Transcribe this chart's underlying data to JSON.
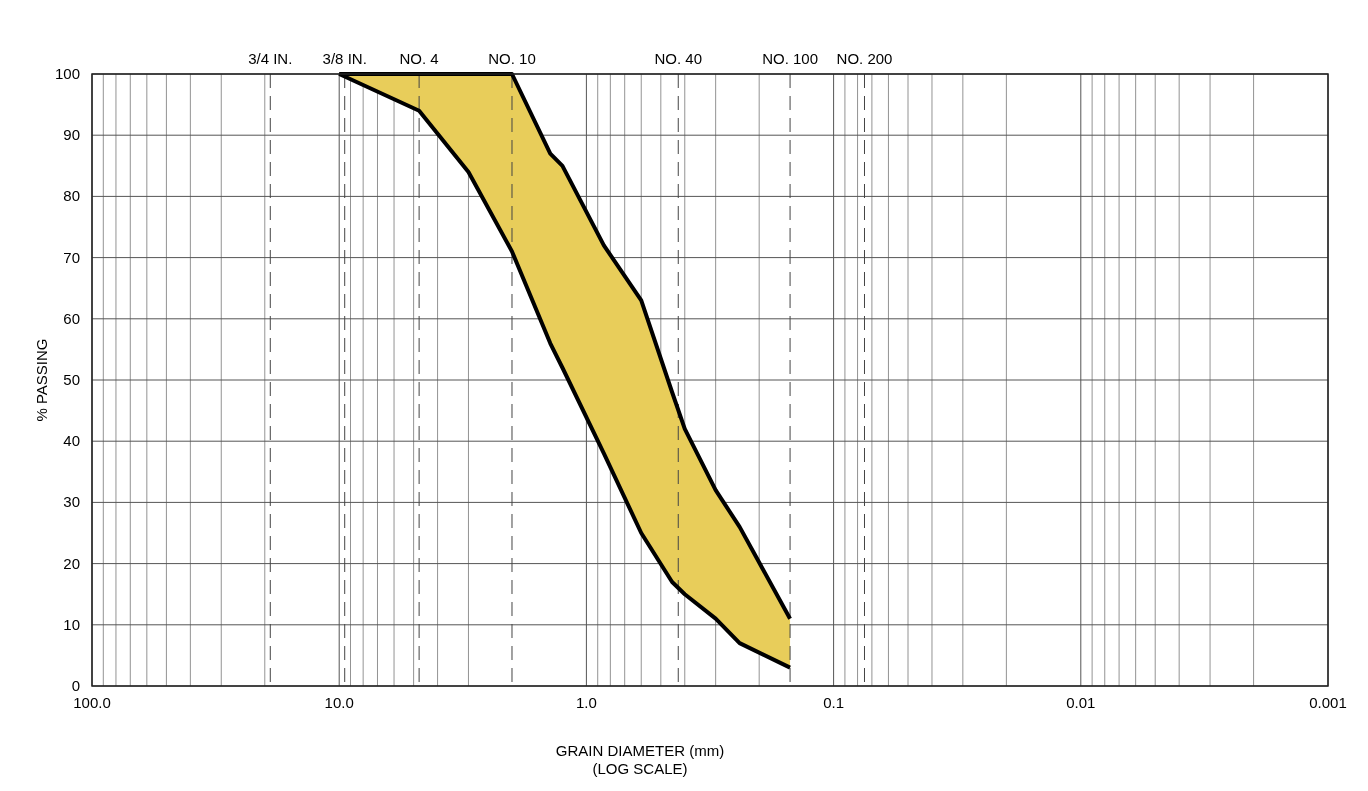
{
  "chart_data": {
    "type": "line",
    "xlabel": "GRAIN DIAMETER (mm)\n(LOG SCALE)",
    "ylabel": "% PASSING",
    "log": "x",
    "grid": true,
    "xlim": [
      100,
      0.001
    ],
    "xticks": [
      {
        "value": 100,
        "label": "100.0"
      },
      {
        "value": 10,
        "label": "10.0"
      },
      {
        "value": 1,
        "label": "1.0"
      },
      {
        "value": 0.1,
        "label": "0.1"
      },
      {
        "value": 0.01,
        "label": "0.01"
      },
      {
        "value": 0.001,
        "label": "0.001"
      }
    ],
    "ref_lines": [
      {
        "axis": "x",
        "value": 19,
        "label": "3/4 IN.",
        "line_style": "dashed"
      },
      {
        "axis": "x",
        "value": 9.5,
        "label": "3/8 IN.",
        "line_style": "dashed"
      },
      {
        "axis": "x",
        "value": 4.75,
        "label": "NO. 4",
        "line_style": "dashed"
      },
      {
        "axis": "x",
        "value": 2,
        "label": "NO. 10",
        "line_style": "dashed"
      },
      {
        "axis": "x",
        "value": 0.425,
        "label": "NO. 40",
        "line_style": "dashed"
      },
      {
        "axis": "x",
        "value": 0.15,
        "label": "NO. 100",
        "line_style": "dashed"
      },
      {
        "axis": "x",
        "value": 0.075,
        "label": "NO. 200",
        "line_style": "dashed"
      }
    ],
    "ylim": [
      0,
      100
    ],
    "yticks": [
      0,
      10,
      20,
      30,
      40,
      50,
      60,
      70,
      80,
      90,
      100
    ],
    "series": [
      {
        "color": "#e8cd5a",
        "x": [
          10,
          4.75,
          3,
          2,
          1.4,
          1.25,
          0.85,
          0.6,
          0.45,
          0.4,
          0.3,
          0.24,
          0.15
        ],
        "values": [
          null,
          null,
          null,
          null,
          null,
          null,
          null,
          null,
          null,
          null,
          null,
          null,
          null
        ],
        "upper": [
          100,
          100,
          100,
          100,
          87,
          85,
          72,
          63,
          48,
          42,
          32,
          26,
          11
        ],
        "lower": [
          100,
          94,
          84,
          71,
          56,
          52,
          38,
          25,
          17,
          15,
          11,
          7,
          3
        ]
      },
      {
        "color": "#000000",
        "x": [
          10,
          4.75,
          3,
          2,
          1.4,
          1.25,
          0.85,
          0.6,
          0.45,
          0.4,
          0.3,
          0.24,
          0.15
        ],
        "values": [
          100,
          100,
          100,
          100,
          87,
          85,
          72,
          63,
          48,
          42,
          32,
          26,
          11
        ]
      },
      {
        "color": "#000000",
        "x": [
          10,
          4.75,
          3,
          2,
          1.4,
          1.25,
          0.85,
          0.6,
          0.45,
          0.4,
          0.3,
          0.24,
          0.15
        ],
        "values": [
          100,
          94,
          84,
          71,
          56,
          52,
          38,
          25,
          17,
          15,
          11,
          7,
          3
        ]
      }
    ]
  }
}
